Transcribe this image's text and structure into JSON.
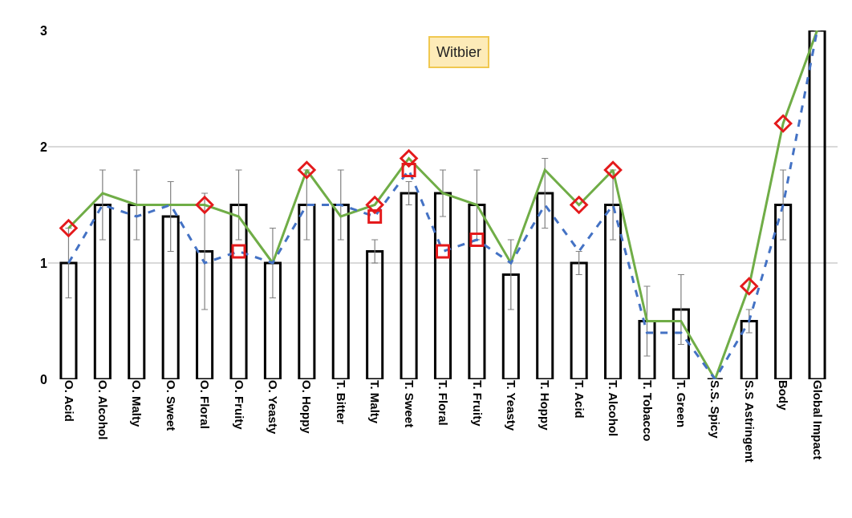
{
  "chart_data": {
    "type": "bar",
    "categories": [
      "O. Acid",
      "O. Alcohol",
      "O. Malty",
      "O. Sweet",
      "O. Floral",
      "O. Fruity",
      "O. Yeasty",
      "O. Hoppy",
      "T. Bitter",
      "T. Malty",
      "T. Sweet",
      "T. Floral",
      "T. Fruity",
      "T. Yeasty",
      "T. Hoppy",
      "T. Acid",
      "T. Alcohol",
      "T. Tobacco",
      "T. Green",
      "S.S. Spicy",
      "S.S Astringent",
      "Body",
      "Global Impact"
    ],
    "series": [
      {
        "color": "#000000",
        "values": [
          1.0,
          1.5,
          1.5,
          1.4,
          1.1,
          1.5,
          1.0,
          1.5,
          1.5,
          1.1,
          1.6,
          1.6,
          1.5,
          0.9,
          1.6,
          1.0,
          1.5,
          0.5,
          0.6,
          0,
          0.5,
          1.5,
          3.0
        ],
        "errors": [
          0.3,
          0.3,
          0.3,
          0.3,
          0.5,
          0.3,
          0.3,
          0.3,
          0.3,
          0.1,
          0.1,
          0.2,
          0.3,
          0.3,
          0.3,
          0.1,
          0.3,
          0.3,
          0.3,
          null,
          0.1,
          0.3,
          null
        ]
      },
      {
        "type": "line",
        "color": "#70ad47",
        "line_style": "solid",
        "marker": "none",
        "values": [
          1.3,
          1.6,
          1.5,
          1.5,
          1.5,
          1.4,
          1.0,
          1.8,
          1.4,
          1.5,
          1.9,
          1.6,
          1.5,
          1.0,
          1.8,
          1.5,
          1.8,
          0.5,
          0.5,
          0,
          0.8,
          2.2,
          3.0
        ]
      },
      {
        "type": "line",
        "color": "#4472c4",
        "line_style": "dashed",
        "marker": "none",
        "values": [
          1.0,
          1.5,
          1.4,
          1.5,
          1.0,
          1.1,
          1.0,
          1.5,
          1.5,
          1.4,
          1.8,
          1.1,
          1.2,
          1.0,
          1.5,
          1.1,
          1.5,
          0.4,
          0.4,
          0,
          0.5,
          1.5,
          3.0
        ]
      },
      {
        "type": "scatter",
        "color": "#e41a1c",
        "marker": "diamond",
        "values": [
          1.3,
          null,
          null,
          null,
          1.5,
          null,
          null,
          1.8,
          null,
          1.5,
          1.9,
          null,
          null,
          null,
          null,
          1.5,
          1.8,
          null,
          null,
          null,
          0.8,
          2.2,
          null
        ]
      },
      {
        "type": "scatter",
        "color": "#e41a1c",
        "marker": "square",
        "values": [
          null,
          null,
          null,
          null,
          null,
          1.1,
          null,
          null,
          null,
          1.4,
          1.8,
          1.1,
          1.2,
          null,
          null,
          null,
          null,
          null,
          null,
          null,
          null,
          null,
          null
        ]
      }
    ],
    "annotations": [
      "Witbier"
    ],
    "ylim": [
      0,
      3
    ],
    "yticks": [
      0,
      1,
      2,
      3
    ],
    "grid": "y"
  }
}
